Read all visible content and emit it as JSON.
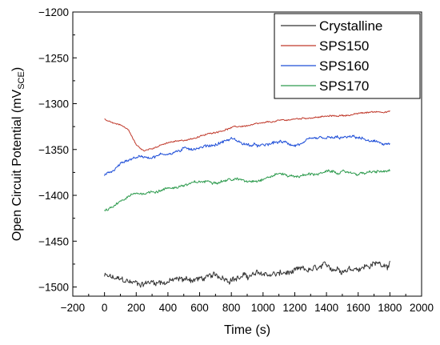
{
  "chart_data": {
    "type": "line",
    "title": "",
    "xlabel": "Time (s)",
    "ylabel": {
      "main": "Open Circuit Potential (mV",
      "sub": "SCE",
      "close": ")"
    },
    "xlim": [
      -200,
      2000
    ],
    "ylim": [
      -1510,
      -1200
    ],
    "xticks": [
      -200,
      0,
      200,
      400,
      600,
      800,
      1000,
      1200,
      1400,
      1600,
      1800,
      2000
    ],
    "xtick_labels": [
      "−200",
      "0",
      "200",
      "400",
      "600",
      "800",
      "1000",
      "1200",
      "1400",
      "1600",
      "1800",
      "2000"
    ],
    "yticks": [
      -1500,
      -1450,
      -1400,
      -1350,
      -1300,
      -1250,
      -1200
    ],
    "ytick_labels": [
      "−1500",
      "−1450",
      "−1400",
      "−1350",
      "−1300",
      "−1250",
      "−1200"
    ],
    "grid": false,
    "legend_position": "top-right",
    "series": [
      {
        "name": "Crystalline",
        "color": "#333333",
        "x": [
          0,
          100,
          200,
          300,
          400,
          500,
          600,
          700,
          800,
          900,
          1000,
          1100,
          1200,
          1300,
          1400,
          1500,
          1600,
          1700,
          1800
        ],
        "y": [
          -1488,
          -1494,
          -1496,
          -1494,
          -1493,
          -1492,
          -1491,
          -1490,
          -1489,
          -1488,
          -1487,
          -1486,
          -1485,
          -1483,
          -1481,
          -1479,
          -1477,
          -1475,
          -1473
        ],
        "noise": 5
      },
      {
        "name": "SPS150",
        "color": "#c0392b",
        "x": [
          0,
          50,
          100,
          150,
          200,
          250,
          300,
          400,
          500,
          600,
          700,
          800,
          900,
          1000,
          1100,
          1200,
          1300,
          1400,
          1500,
          1600,
          1700,
          1800
        ],
        "y": [
          -1317,
          -1322,
          -1323,
          -1328,
          -1345,
          -1352,
          -1348,
          -1343,
          -1340,
          -1336,
          -1331,
          -1326,
          -1324,
          -1322,
          -1319,
          -1317,
          -1315,
          -1314,
          -1313,
          -1311,
          -1309,
          -1308
        ],
        "noise": 1.2
      },
      {
        "name": "SPS160",
        "color": "#1f4fd8",
        "x": [
          0,
          50,
          100,
          150,
          200,
          300,
          400,
          500,
          600,
          700,
          800,
          900,
          1000,
          1100,
          1200,
          1300,
          1400,
          1500,
          1600,
          1700,
          1800
        ],
        "y": [
          -1377,
          -1374,
          -1366,
          -1361,
          -1358,
          -1357,
          -1354,
          -1350,
          -1347,
          -1344,
          -1338,
          -1345,
          -1347,
          -1342,
          -1345,
          -1341,
          -1339,
          -1338,
          -1337,
          -1343,
          -1344
        ],
        "noise": 2.5
      },
      {
        "name": "SPS170",
        "color": "#2e9b4e",
        "x": [
          0,
          50,
          100,
          150,
          200,
          300,
          400,
          500,
          600,
          700,
          800,
          900,
          1000,
          1100,
          1200,
          1300,
          1400,
          1500,
          1600,
          1700,
          1800
        ],
        "y": [
          -1417,
          -1414,
          -1408,
          -1402,
          -1399,
          -1396,
          -1392,
          -1389,
          -1386,
          -1384,
          -1382,
          -1384,
          -1381,
          -1376,
          -1379,
          -1377,
          -1375,
          -1375,
          -1376,
          -1375,
          -1374
        ],
        "noise": 2.2
      }
    ]
  }
}
